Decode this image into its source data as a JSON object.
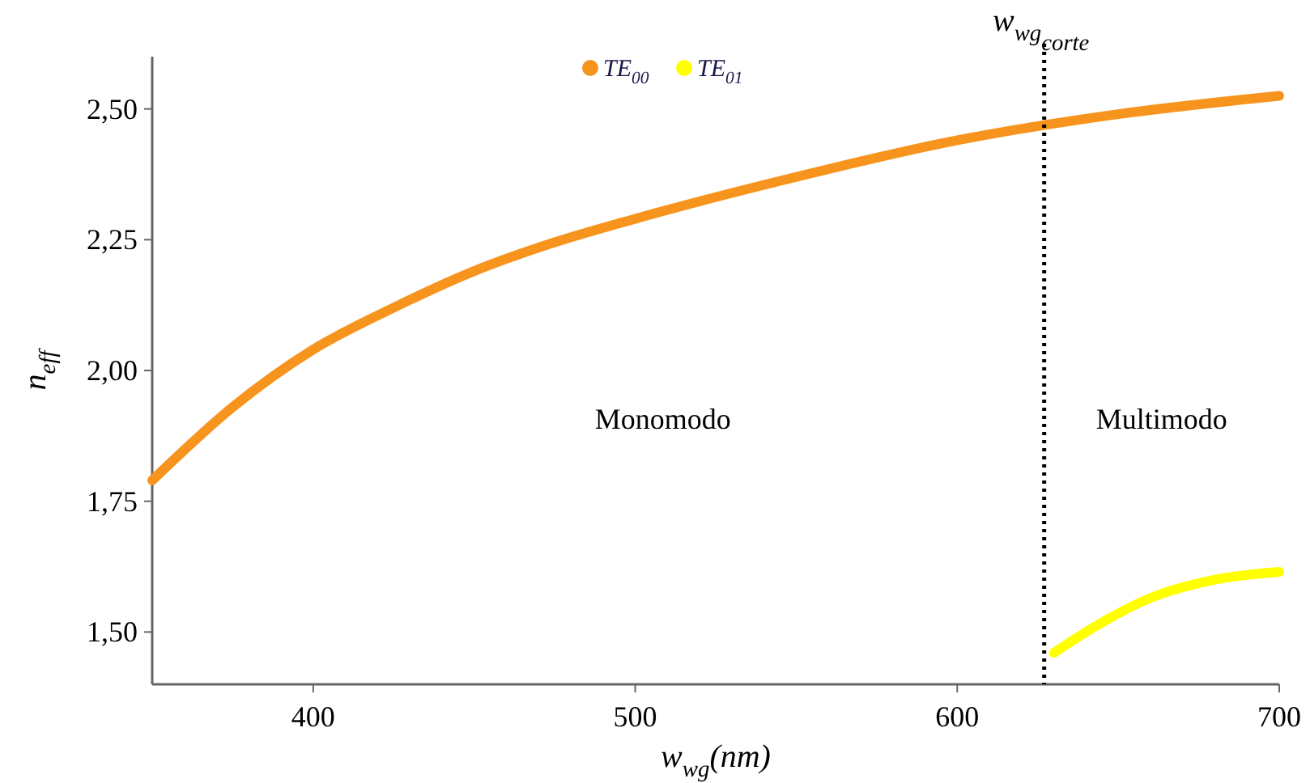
{
  "chart_data": {
    "type": "line",
    "xlabel": "w$_{wg}$(nm)",
    "ylabel": "n$_{eff}$",
    "xlim": [
      350,
      700
    ],
    "xticks": [
      400,
      500,
      600,
      700
    ],
    "ylim": [
      1.4,
      2.6
    ],
    "yticks": [
      {
        "value": 1.5,
        "label": "1,50"
      },
      {
        "value": 1.75,
        "label": "1,75"
      },
      {
        "value": 2,
        "label": "2,00"
      },
      {
        "value": 2.25,
        "label": "2,25"
      },
      {
        "value": 2.5,
        "label": "2,50"
      }
    ],
    "series": [
      {
        "name": "TE$_{00}$",
        "color": "#f7941d",
        "x": [
          350,
          375,
          400,
          425,
          450,
          475,
          500,
          550,
          600,
          650,
          700
        ],
        "values": [
          1.79,
          1.93,
          2.04,
          2.12,
          2.19,
          2.245,
          2.29,
          2.37,
          2.44,
          2.49,
          2.525
        ]
      },
      {
        "name": "TE$_{01}$",
        "color": "#ffff00",
        "x": [
          630,
          640,
          660,
          680,
          700
        ],
        "values": [
          1.46,
          1.5,
          1.565,
          1.6,
          1.615
        ]
      }
    ],
    "ref_lines": [
      {
        "axis": "x",
        "value": 627,
        "label": "w$_{wg}$$_{corte}$",
        "color": "#000000",
        "line_style": "dotted"
      }
    ],
    "annotations": [
      "Monomodo",
      "Multimodo"
    ],
    "legend": "top",
    "marker": "none",
    "grid": false
  }
}
